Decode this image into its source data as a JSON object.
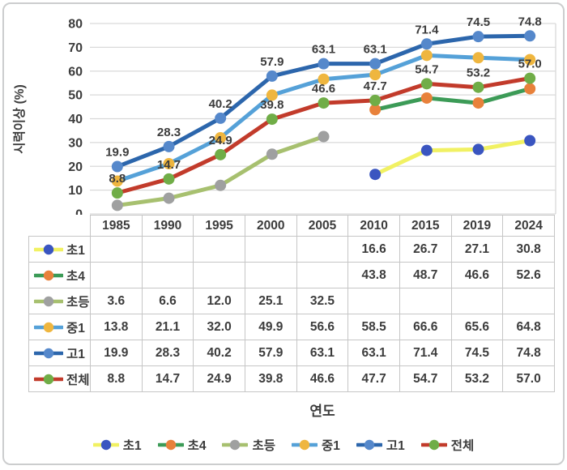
{
  "chart_data": {
    "type": "line",
    "title": "",
    "xlabel": "연도",
    "ylabel": "시력이상 (%)",
    "ylim": [
      0,
      80
    ],
    "yticks": [
      0,
      10,
      20,
      30,
      40,
      50,
      60,
      70,
      80
    ],
    "grid": "horizontal",
    "legend_position": "bottom",
    "categories": [
      "1985",
      "1990",
      "1995",
      "2000",
      "2005",
      "2010",
      "2015",
      "2019",
      "2024"
    ],
    "series": [
      {
        "name": "초1",
        "line_color": "#f1f163",
        "marker_color": "#3a55c0",
        "labels_shown": false,
        "values": [
          null,
          null,
          null,
          null,
          null,
          16.6,
          26.7,
          27.1,
          30.8
        ]
      },
      {
        "name": "초4",
        "line_color": "#3c9b57",
        "marker_color": "#e8813b",
        "labels_shown": false,
        "values": [
          null,
          null,
          null,
          null,
          null,
          43.8,
          48.7,
          46.6,
          52.6
        ]
      },
      {
        "name": "초등",
        "line_color": "#a7c06f",
        "marker_color": "#9fa0a0",
        "labels_shown": false,
        "values": [
          3.6,
          6.6,
          12.0,
          25.1,
          32.5,
          null,
          null,
          null,
          null
        ]
      },
      {
        "name": "중1",
        "line_color": "#55a1d8",
        "marker_color": "#efb63f",
        "labels_shown": false,
        "values": [
          13.8,
          21.1,
          32.0,
          49.9,
          56.6,
          58.5,
          66.6,
          65.6,
          64.8
        ]
      },
      {
        "name": "고1",
        "line_color": "#2c66ac",
        "marker_color": "#5588cb",
        "labels_shown": true,
        "values": [
          19.9,
          28.3,
          40.2,
          57.9,
          63.1,
          63.1,
          71.4,
          74.5,
          74.8
        ]
      },
      {
        "name": "전체",
        "line_color": "#c23b2b",
        "marker_color": "#70ad47",
        "labels_shown": true,
        "values": [
          8.8,
          14.7,
          24.9,
          39.8,
          46.6,
          47.7,
          54.7,
          53.2,
          57.0
        ]
      }
    ],
    "colors": {
      "grid": "#d9d9d9",
      "text": "#3c3c3c",
      "table_border": "#c6c6c6"
    }
  }
}
